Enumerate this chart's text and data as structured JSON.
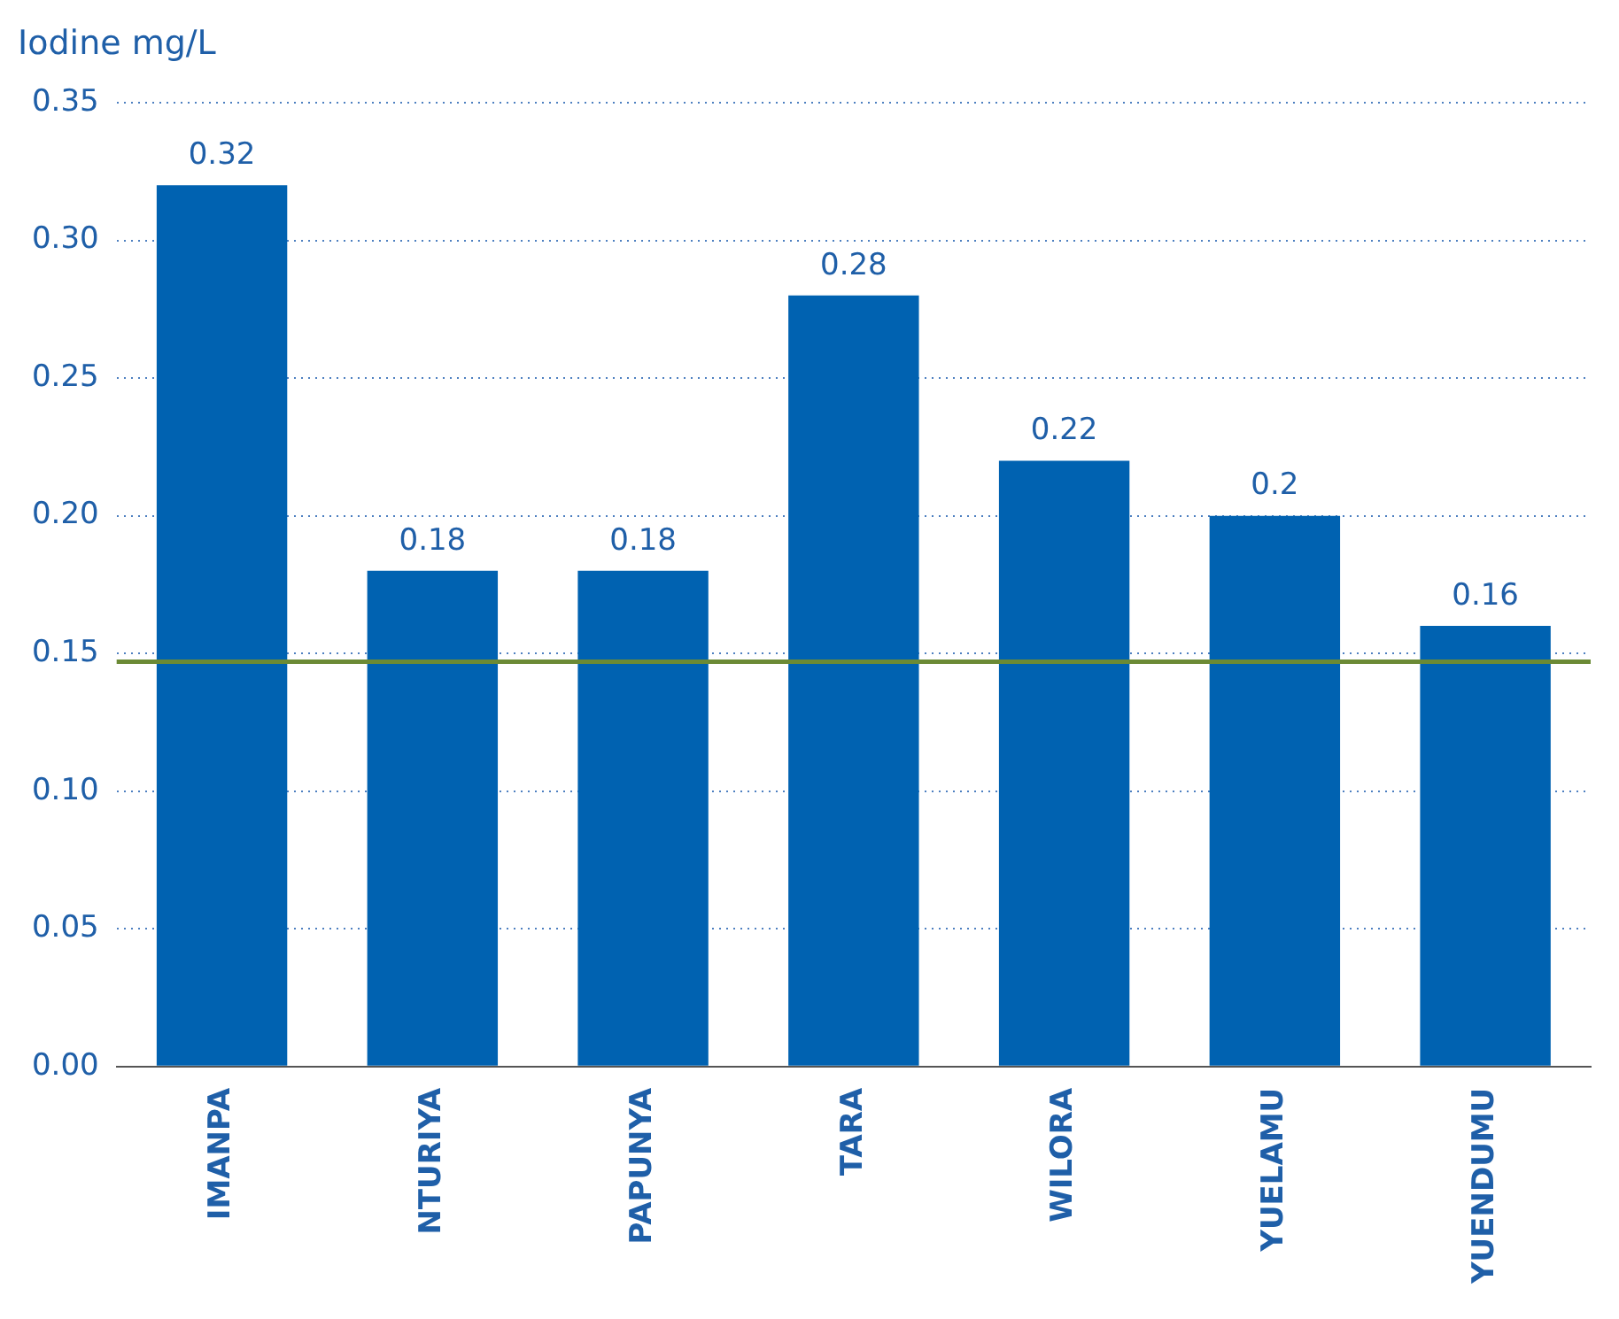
{
  "chart_data": {
    "type": "bar",
    "ylabel": "Iodine mg/L",
    "categories": [
      "IMANPA",
      "NTURIYA",
      "PAPUNYA",
      "TARA",
      "WILORA",
      "YUELAMU",
      "YUENDUMU"
    ],
    "values": [
      0.32,
      0.18,
      0.18,
      0.28,
      0.22,
      0.2,
      0.16
    ],
    "color": "#0062b1",
    "ylim": [
      0,
      0.35
    ],
    "yticks": [
      {
        "value": 0,
        "label": "0.00"
      },
      {
        "value": 0.05,
        "label": "0.05"
      },
      {
        "value": 0.1,
        "label": "0.10"
      },
      {
        "value": 0.15,
        "label": "0.15"
      },
      {
        "value": 0.2,
        "label": "0.20"
      },
      {
        "value": 0.25,
        "label": "0.25"
      },
      {
        "value": 0.3,
        "label": "0.30"
      },
      {
        "value": 0.35,
        "label": "0.35"
      }
    ],
    "ref_lines": [
      {
        "axis": "y",
        "value": 0.147,
        "color": "#6b8a35"
      }
    ],
    "grid": "y",
    "data_labels": true
  }
}
